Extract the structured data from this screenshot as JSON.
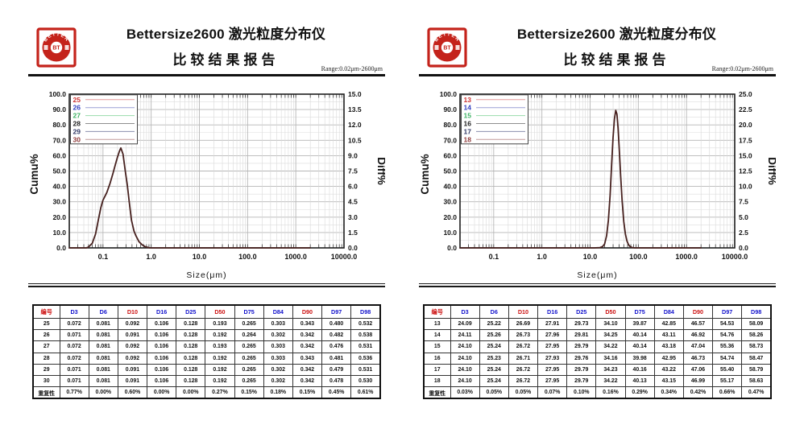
{
  "panels": [
    {
      "header": {
        "title_line1": "Bettersize2600 激光粒度分布仪",
        "title_line2": "比较结果报告",
        "range_note": "Range:0.02μm-2600μm",
        "logo": {
          "arc_text": "BETTER",
          "center_text": "BT",
          "color": "#c4231b"
        }
      },
      "chart_data": {
        "type": "line",
        "title": "",
        "x_axis": {
          "label": "Size(μm)",
          "scale": "log",
          "min": 0.02,
          "max": 10000,
          "ticks": [
            0.1,
            1,
            10,
            100,
            1000,
            10000
          ],
          "tick_labels": [
            "0.1",
            "1.0",
            "10.0",
            "100.0",
            "1000.0",
            "10000.0"
          ]
        },
        "y_left": {
          "label": "Cumu%",
          "min": 0,
          "max": 100,
          "tick_labels": [
            "100.0",
            "90.0",
            "80.0",
            "70.0",
            "60.0",
            "50.0",
            "40.0",
            "30.0",
            "20.0",
            "10.0",
            "0.0"
          ]
        },
        "y_right": {
          "label": "Diff%",
          "min": 0,
          "max": 15,
          "tick_labels": [
            "15.0",
            "13.5",
            "12.0",
            "10.5",
            "9.0",
            "7.5",
            "6.0",
            "4.5",
            "3.0",
            "1.5",
            "0.0"
          ]
        },
        "grid": true,
        "legend_position": "top-left",
        "legend": [
          {
            "label": "25",
            "text_color": "#cc3333",
            "line_color": "#e39a9a"
          },
          {
            "label": "26",
            "text_color": "#3340c0",
            "line_color": "#9aa0d6"
          },
          {
            "label": "27",
            "text_color": "#3cb163",
            "line_color": "#9adbab"
          },
          {
            "label": "28",
            "text_color": "#222222",
            "line_color": "#8f8f8f"
          },
          {
            "label": "29",
            "text_color": "#333a66",
            "line_color": "#8a8fae"
          },
          {
            "label": "30",
            "text_color": "#8e3a3a",
            "line_color": "#c29a9a"
          }
        ],
        "curve_color": "#46201e",
        "curve_note": "6 overlapping sample diff curves, values on Cumu% left scale",
        "diff_curve": [
          [
            0.02,
            0
          ],
          [
            0.045,
            0
          ],
          [
            0.05,
            0.5
          ],
          [
            0.06,
            3
          ],
          [
            0.07,
            9
          ],
          [
            0.08,
            18
          ],
          [
            0.09,
            26
          ],
          [
            0.1,
            31
          ],
          [
            0.12,
            36
          ],
          [
            0.14,
            42
          ],
          [
            0.16,
            48
          ],
          [
            0.18,
            54
          ],
          [
            0.2,
            59
          ],
          [
            0.22,
            63
          ],
          [
            0.235,
            65
          ],
          [
            0.26,
            61
          ],
          [
            0.29,
            50
          ],
          [
            0.32,
            41
          ],
          [
            0.35,
            30
          ],
          [
            0.39,
            18
          ],
          [
            0.44,
            11
          ],
          [
            0.48,
            8
          ],
          [
            0.56,
            4
          ],
          [
            0.65,
            2
          ],
          [
            0.75,
            0.8
          ],
          [
            0.9,
            0.1
          ],
          [
            1.0,
            0
          ],
          [
            2000,
            0
          ]
        ]
      },
      "table": {
        "headers": [
          "编号",
          "D3",
          "D6",
          "D10",
          "D16",
          "D25",
          "D50",
          "D75",
          "D84",
          "D90",
          "D97",
          "D98"
        ],
        "header_colors": [
          "#cc1111",
          "#1111cc",
          "#1111cc",
          "#cc1111",
          "#1111cc",
          "#1111cc",
          "#cc1111",
          "#1111cc",
          "#1111cc",
          "#cc1111",
          "#1111cc",
          "#1111cc"
        ],
        "rows": [
          [
            "25",
            "0.072",
            "0.081",
            "0.092",
            "0.106",
            "0.128",
            "0.193",
            "0.265",
            "0.303",
            "0.343",
            "0.480",
            "0.532"
          ],
          [
            "26",
            "0.071",
            "0.081",
            "0.091",
            "0.106",
            "0.128",
            "0.192",
            "0.264",
            "0.302",
            "0.342",
            "0.482",
            "0.538"
          ],
          [
            "27",
            "0.072",
            "0.081",
            "0.092",
            "0.106",
            "0.128",
            "0.193",
            "0.265",
            "0.303",
            "0.342",
            "0.476",
            "0.531"
          ],
          [
            "28",
            "0.072",
            "0.081",
            "0.092",
            "0.106",
            "0.128",
            "0.192",
            "0.265",
            "0.303",
            "0.343",
            "0.481",
            "0.536"
          ],
          [
            "29",
            "0.071",
            "0.081",
            "0.091",
            "0.106",
            "0.128",
            "0.192",
            "0.265",
            "0.302",
            "0.342",
            "0.479",
            "0.531"
          ],
          [
            "30",
            "0.071",
            "0.081",
            "0.091",
            "0.106",
            "0.128",
            "0.192",
            "0.265",
            "0.302",
            "0.342",
            "0.478",
            "0.530"
          ],
          [
            "重复性",
            "0.77%",
            "0.00%",
            "0.60%",
            "0.00%",
            "0.00%",
            "0.27%",
            "0.15%",
            "0.18%",
            "0.15%",
            "0.45%",
            "0.61%"
          ]
        ]
      }
    },
    {
      "header": {
        "title_line1": "Bettersize2600 激光粒度分布仪",
        "title_line2": "比较结果报告",
        "range_note": "Range:0.02μm-2600μm",
        "logo": {
          "arc_text": "BETTER",
          "center_text": "BT",
          "color": "#c4231b"
        }
      },
      "chart_data": {
        "type": "line",
        "title": "",
        "x_axis": {
          "label": "Size(μm)",
          "scale": "log",
          "min": 0.02,
          "max": 10000,
          "ticks": [
            0.1,
            1,
            10,
            100,
            1000,
            10000
          ],
          "tick_labels": [
            "0.1",
            "1.0",
            "10.0",
            "100.0",
            "1000.0",
            "10000.0"
          ]
        },
        "y_left": {
          "label": "Cumu%",
          "min": 0,
          "max": 100,
          "tick_labels": [
            "100.0",
            "90.0",
            "80.0",
            "70.0",
            "60.0",
            "50.0",
            "40.0",
            "30.0",
            "20.0",
            "10.0",
            "0.0"
          ]
        },
        "y_right": {
          "label": "Diff%",
          "min": 0,
          "max": 25,
          "tick_labels": [
            "25.0",
            "22.5",
            "20.0",
            "17.5",
            "15.0",
            "12.5",
            "10.0",
            "7.5",
            "5.0",
            "2.5",
            "0.0"
          ]
        },
        "grid": true,
        "legend_position": "top-left",
        "legend": [
          {
            "label": "13",
            "text_color": "#cc3333",
            "line_color": "#e39a9a"
          },
          {
            "label": "14",
            "text_color": "#3340c0",
            "line_color": "#9aa0d6"
          },
          {
            "label": "15",
            "text_color": "#3cb163",
            "line_color": "#9adbab"
          },
          {
            "label": "16",
            "text_color": "#222222",
            "line_color": "#8f8f8f"
          },
          {
            "label": "17",
            "text_color": "#333a66",
            "line_color": "#8a8fae"
          },
          {
            "label": "18",
            "text_color": "#8e3a3a",
            "line_color": "#c29a9a"
          }
        ],
        "curve_color": "#46201e",
        "curve_note": "6 overlapping sample diff curves, values on Cumu% left scale",
        "diff_curve": [
          [
            0.02,
            0
          ],
          [
            12,
            0
          ],
          [
            16,
            0.2
          ],
          [
            18,
            0.8
          ],
          [
            20,
            2.5
          ],
          [
            22,
            8
          ],
          [
            24,
            18
          ],
          [
            26,
            34
          ],
          [
            28,
            54
          ],
          [
            30,
            72
          ],
          [
            32,
            84
          ],
          [
            34,
            89.5
          ],
          [
            36,
            87
          ],
          [
            38,
            78
          ],
          [
            40,
            66
          ],
          [
            43,
            47
          ],
          [
            46,
            31
          ],
          [
            50,
            17
          ],
          [
            54,
            9
          ],
          [
            58,
            4.5
          ],
          [
            63,
            2
          ],
          [
            68,
            0.8
          ],
          [
            75,
            0.2
          ],
          [
            85,
            0
          ],
          [
            2000,
            0
          ]
        ]
      },
      "table": {
        "headers": [
          "编号",
          "D3",
          "D6",
          "D10",
          "D16",
          "D25",
          "D50",
          "D75",
          "D84",
          "D90",
          "D97",
          "D98"
        ],
        "header_colors": [
          "#cc1111",
          "#1111cc",
          "#1111cc",
          "#cc1111",
          "#1111cc",
          "#1111cc",
          "#cc1111",
          "#1111cc",
          "#1111cc",
          "#cc1111",
          "#1111cc",
          "#1111cc"
        ],
        "rows": [
          [
            "13",
            "24.09",
            "25.22",
            "26.69",
            "27.91",
            "29.73",
            "34.10",
            "39.87",
            "42.85",
            "46.57",
            "54.53",
            "58.09"
          ],
          [
            "14",
            "24.11",
            "25.26",
            "26.73",
            "27.96",
            "29.81",
            "34.25",
            "40.14",
            "43.11",
            "46.92",
            "54.76",
            "58.26"
          ],
          [
            "15",
            "24.10",
            "25.24",
            "26.72",
            "27.95",
            "29.79",
            "34.22",
            "40.14",
            "43.18",
            "47.04",
            "55.36",
            "58.73"
          ],
          [
            "16",
            "24.10",
            "25.23",
            "26.71",
            "27.93",
            "29.76",
            "34.16",
            "39.98",
            "42.95",
            "46.73",
            "54.74",
            "58.47"
          ],
          [
            "17",
            "24.10",
            "25.24",
            "26.72",
            "27.95",
            "29.79",
            "34.23",
            "40.16",
            "43.22",
            "47.06",
            "55.40",
            "58.79"
          ],
          [
            "18",
            "24.10",
            "25.24",
            "26.72",
            "27.95",
            "29.79",
            "34.22",
            "40.13",
            "43.15",
            "46.99",
            "55.17",
            "58.63"
          ],
          [
            "重复性",
            "0.03%",
            "0.05%",
            "0.05%",
            "0.07%",
            "0.10%",
            "0.16%",
            "0.29%",
            "0.34%",
            "0.42%",
            "0.66%",
            "0.47%"
          ]
        ]
      }
    }
  ]
}
